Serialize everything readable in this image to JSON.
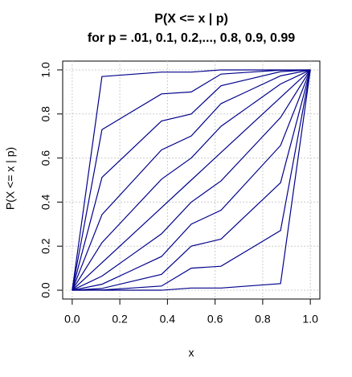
{
  "chart_data": {
    "type": "line",
    "title": "P(X <= x | p)",
    "subtitle": "for p = .01, 0.1, 0.2,..., 0.8, 0.9, 0.99",
    "x_label": "x",
    "y_label": "P(X <= x | p)",
    "color": "#00008b",
    "grid": true,
    "x": [
      0,
      0.125,
      0.25,
      0.375,
      0.5,
      0.625,
      0.75,
      0.875,
      1
    ],
    "series": [
      {
        "values": [
          0,
          0,
          0,
          0,
          0.01,
          0.01,
          0.02,
          0.03,
          1
        ]
      },
      {
        "values": [
          0,
          0.001,
          0.01,
          0.019,
          0.1,
          0.109,
          0.19,
          0.271,
          1
        ]
      },
      {
        "values": [
          0,
          0.008,
          0.04,
          0.072,
          0.2,
          0.232,
          0.36,
          0.488,
          1
        ]
      },
      {
        "values": [
          0,
          0.027,
          0.09,
          0.153,
          0.3,
          0.363,
          0.51,
          0.657,
          1
        ]
      },
      {
        "values": [
          0,
          0.064,
          0.16,
          0.256,
          0.4,
          0.496,
          0.64,
          0.784,
          1
        ]
      },
      {
        "values": [
          0,
          0.125,
          0.25,
          0.375,
          0.5,
          0.625,
          0.75,
          0.875,
          1
        ]
      },
      {
        "values": [
          0,
          0.216,
          0.36,
          0.504,
          0.6,
          0.744,
          0.84,
          0.936,
          1
        ]
      },
      {
        "values": [
          0,
          0.343,
          0.49,
          0.637,
          0.7,
          0.847,
          0.91,
          0.973,
          1
        ]
      },
      {
        "values": [
          0,
          0.512,
          0.64,
          0.768,
          0.8,
          0.928,
          0.96,
          0.992,
          1
        ]
      },
      {
        "values": [
          0,
          0.729,
          0.81,
          0.891,
          0.9,
          0.981,
          0.99,
          0.999,
          1
        ]
      },
      {
        "values": [
          0,
          0.97,
          0.98,
          0.99,
          0.99,
          1,
          1,
          1,
          1
        ]
      }
    ],
    "xlim": [
      -0.04,
      1.04
    ],
    "ylim": [
      -0.04,
      1.04
    ],
    "xticks": [
      {
        "value": 0,
        "label": "0.0"
      },
      0.2,
      0.4,
      0.6,
      0.8,
      {
        "value": 1,
        "label": "1.0"
      }
    ],
    "yticks": [
      {
        "value": 0,
        "label": "0.0"
      },
      0.2,
      0.4,
      0.6,
      0.8,
      {
        "value": 1,
        "label": "1.0"
      }
    ]
  }
}
